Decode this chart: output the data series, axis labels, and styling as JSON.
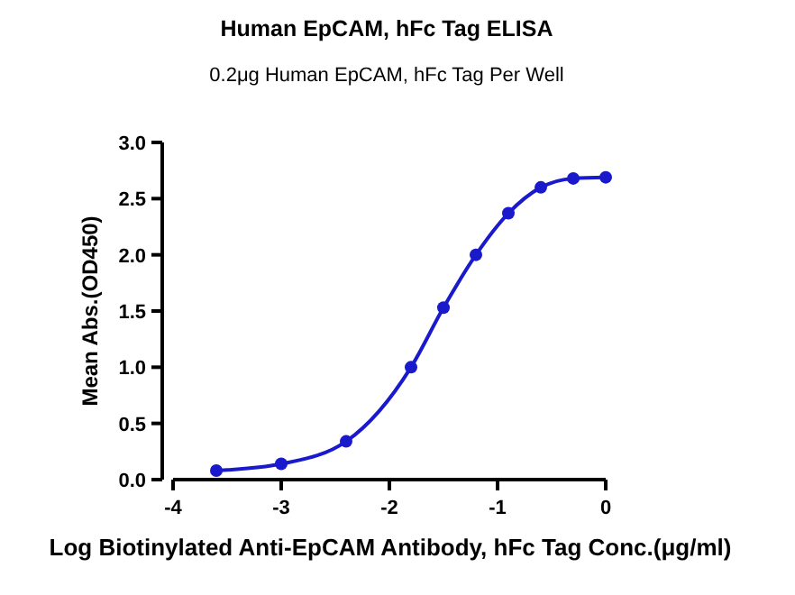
{
  "chart_data": {
    "type": "line",
    "title": "Human EpCAM, hFc Tag ELISA",
    "subtitle": "0.2μg Human EpCAM, hFc Tag Per Well",
    "xlabel": "Log Biotinylated Anti-EpCAM Antibody, hFc Tag Conc.(μg/ml)",
    "ylabel": "Mean Abs.(OD450)",
    "x": [
      -3.6,
      -3.0,
      -2.4,
      -1.8,
      -1.5,
      -1.2,
      -0.9,
      -0.6,
      -0.3,
      0
    ],
    "series": [
      {
        "color": "#1a1acc",
        "values": [
          0.08,
          0.14,
          0.34,
          1.0,
          1.53,
          2.0,
          2.37,
          2.6,
          2.68,
          2.69
        ]
      }
    ],
    "xlim": [
      -4,
      0
    ],
    "xticks": [
      -4,
      -3,
      -2,
      -1,
      0
    ],
    "ylim": [
      0,
      3
    ],
    "yticks": [
      {
        "value": 0,
        "label": "0.0"
      },
      {
        "value": 0.5,
        "label": "0.5"
      },
      {
        "value": 1,
        "label": "1.0"
      },
      {
        "value": 1.5,
        "label": "1.5"
      },
      {
        "value": 2,
        "label": "2.0"
      },
      {
        "value": 2.5,
        "label": "2.5"
      },
      {
        "value": 3,
        "label": "3.0"
      }
    ],
    "marker": "circle",
    "line_style": "solid",
    "grid": false
  }
}
